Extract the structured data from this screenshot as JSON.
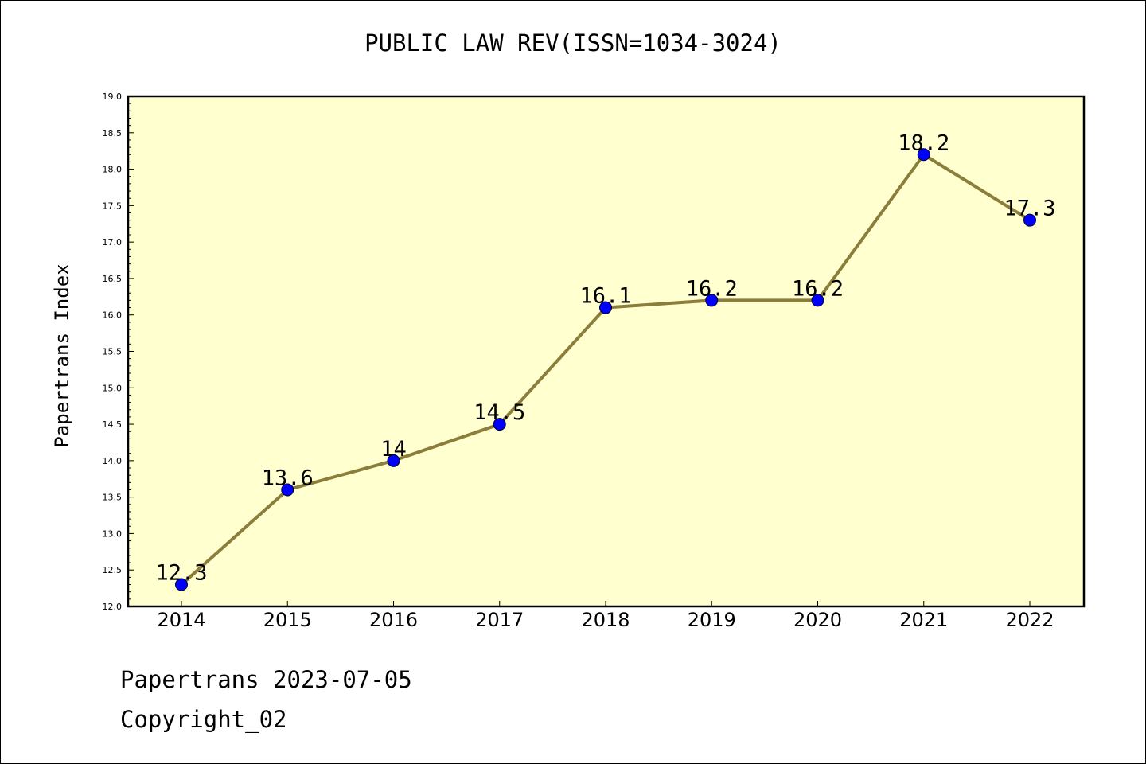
{
  "chart_data": {
    "type": "line",
    "title": "PUBLIC LAW REV(ISSN=1034-3024)",
    "xlabel": "",
    "ylabel": "Papertrans Index",
    "x": [
      "2014",
      "2015",
      "2016",
      "2017",
      "2018",
      "2019",
      "2020",
      "2021",
      "2022"
    ],
    "series": [
      {
        "values": [
          12.3,
          13.6,
          14,
          14.5,
          16.1,
          16.2,
          16.2,
          18.2,
          17.3
        ],
        "labels": [
          "12.3",
          "13.6",
          "14",
          "14.5",
          "16.1",
          "16.2",
          "16.2",
          "18.2",
          "17.3"
        ]
      }
    ],
    "ylim": [
      12.0,
      19.0
    ],
    "yticks": [
      "12.0",
      "12.5",
      "13.0",
      "13.5",
      "14.0",
      "14.5",
      "15.0",
      "15.5",
      "16.0",
      "16.5",
      "17.0",
      "17.5",
      "18.0",
      "18.5",
      "19.0"
    ],
    "grid": false,
    "colors": {
      "plot_background": "#ffffd0",
      "line": "#8b7d3a",
      "marker": "#0000ff"
    }
  },
  "footer": {
    "line1": "Papertrans 2023-07-05",
    "line2": "Copyright_02"
  }
}
